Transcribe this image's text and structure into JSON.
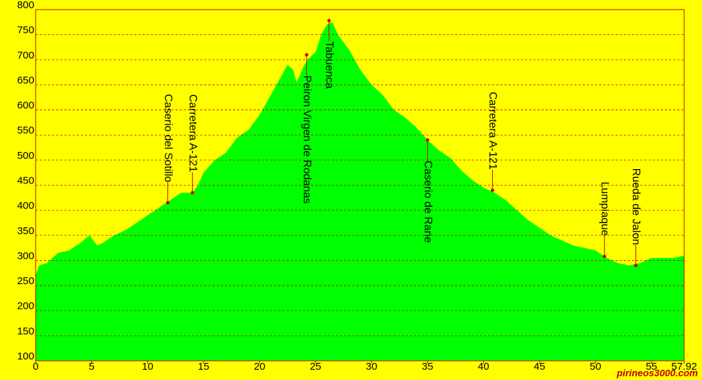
{
  "chart_data": {
    "type": "area",
    "color": "#00ff00",
    "background": "#ffff00",
    "grid_color": "#cc0000",
    "grid": true,
    "x": [
      0,
      0.3,
      1,
      2,
      3,
      4,
      4.8,
      5.5,
      6,
      7,
      8,
      9,
      10,
      11,
      12,
      13,
      14,
      14.5,
      15,
      16,
      17,
      18,
      19,
      20,
      21,
      22,
      22.5,
      23,
      23.3,
      24,
      24.5,
      25,
      25.5,
      26,
      26.5,
      27,
      28,
      29,
      30,
      31,
      32,
      33,
      34,
      35,
      36,
      37,
      38,
      39,
      40,
      41,
      42,
      43,
      44,
      45,
      46,
      47,
      48,
      49,
      50,
      51,
      52,
      53,
      54,
      55,
      56,
      57,
      57.92
    ],
    "values": [
      270,
      290,
      295,
      315,
      320,
      335,
      350,
      330,
      335,
      350,
      360,
      375,
      390,
      405,
      420,
      435,
      435,
      450,
      475,
      500,
      515,
      545,
      560,
      590,
      630,
      670,
      690,
      680,
      655,
      690,
      705,
      715,
      750,
      770,
      775,
      750,
      720,
      680,
      650,
      630,
      600,
      585,
      565,
      540,
      520,
      505,
      480,
      460,
      445,
      435,
      420,
      400,
      380,
      365,
      350,
      340,
      330,
      325,
      320,
      305,
      295,
      290,
      295,
      305,
      305,
      305,
      310
    ],
    "xlim": [
      0,
      57.92
    ],
    "ylim": [
      100,
      800
    ],
    "xticks": [
      0,
      5,
      10,
      15,
      20,
      25,
      30,
      35,
      40,
      45,
      50,
      55,
      57.92
    ],
    "yticks": [
      100,
      150,
      200,
      250,
      300,
      350,
      400,
      450,
      500,
      550,
      600,
      650,
      700,
      750,
      800
    ],
    "annotations": [
      {
        "label": "Caserio del Sotillo",
        "x": 11.8,
        "y": 415,
        "side": "above"
      },
      {
        "label": "Carretera A-121",
        "x": 14,
        "y": 435,
        "side": "above"
      },
      {
        "label": "Peiron Virgen de Rodanas",
        "x": 24.2,
        "y": 710,
        "side": "below"
      },
      {
        "label": "Tabuenca",
        "x": 26.2,
        "y": 778,
        "side": "below"
      },
      {
        "label": "Caserio de Rane",
        "x": 35,
        "y": 540,
        "side": "below"
      },
      {
        "label": "Carretera A-121",
        "x": 40.8,
        "y": 440,
        "side": "above"
      },
      {
        "label": "Lumpiaque",
        "x": 50.8,
        "y": 308,
        "side": "above"
      },
      {
        "label": "Rueda de Jalon",
        "x": 53.6,
        "y": 290,
        "side": "above"
      }
    ],
    "watermark": "pirineos3000.com"
  }
}
